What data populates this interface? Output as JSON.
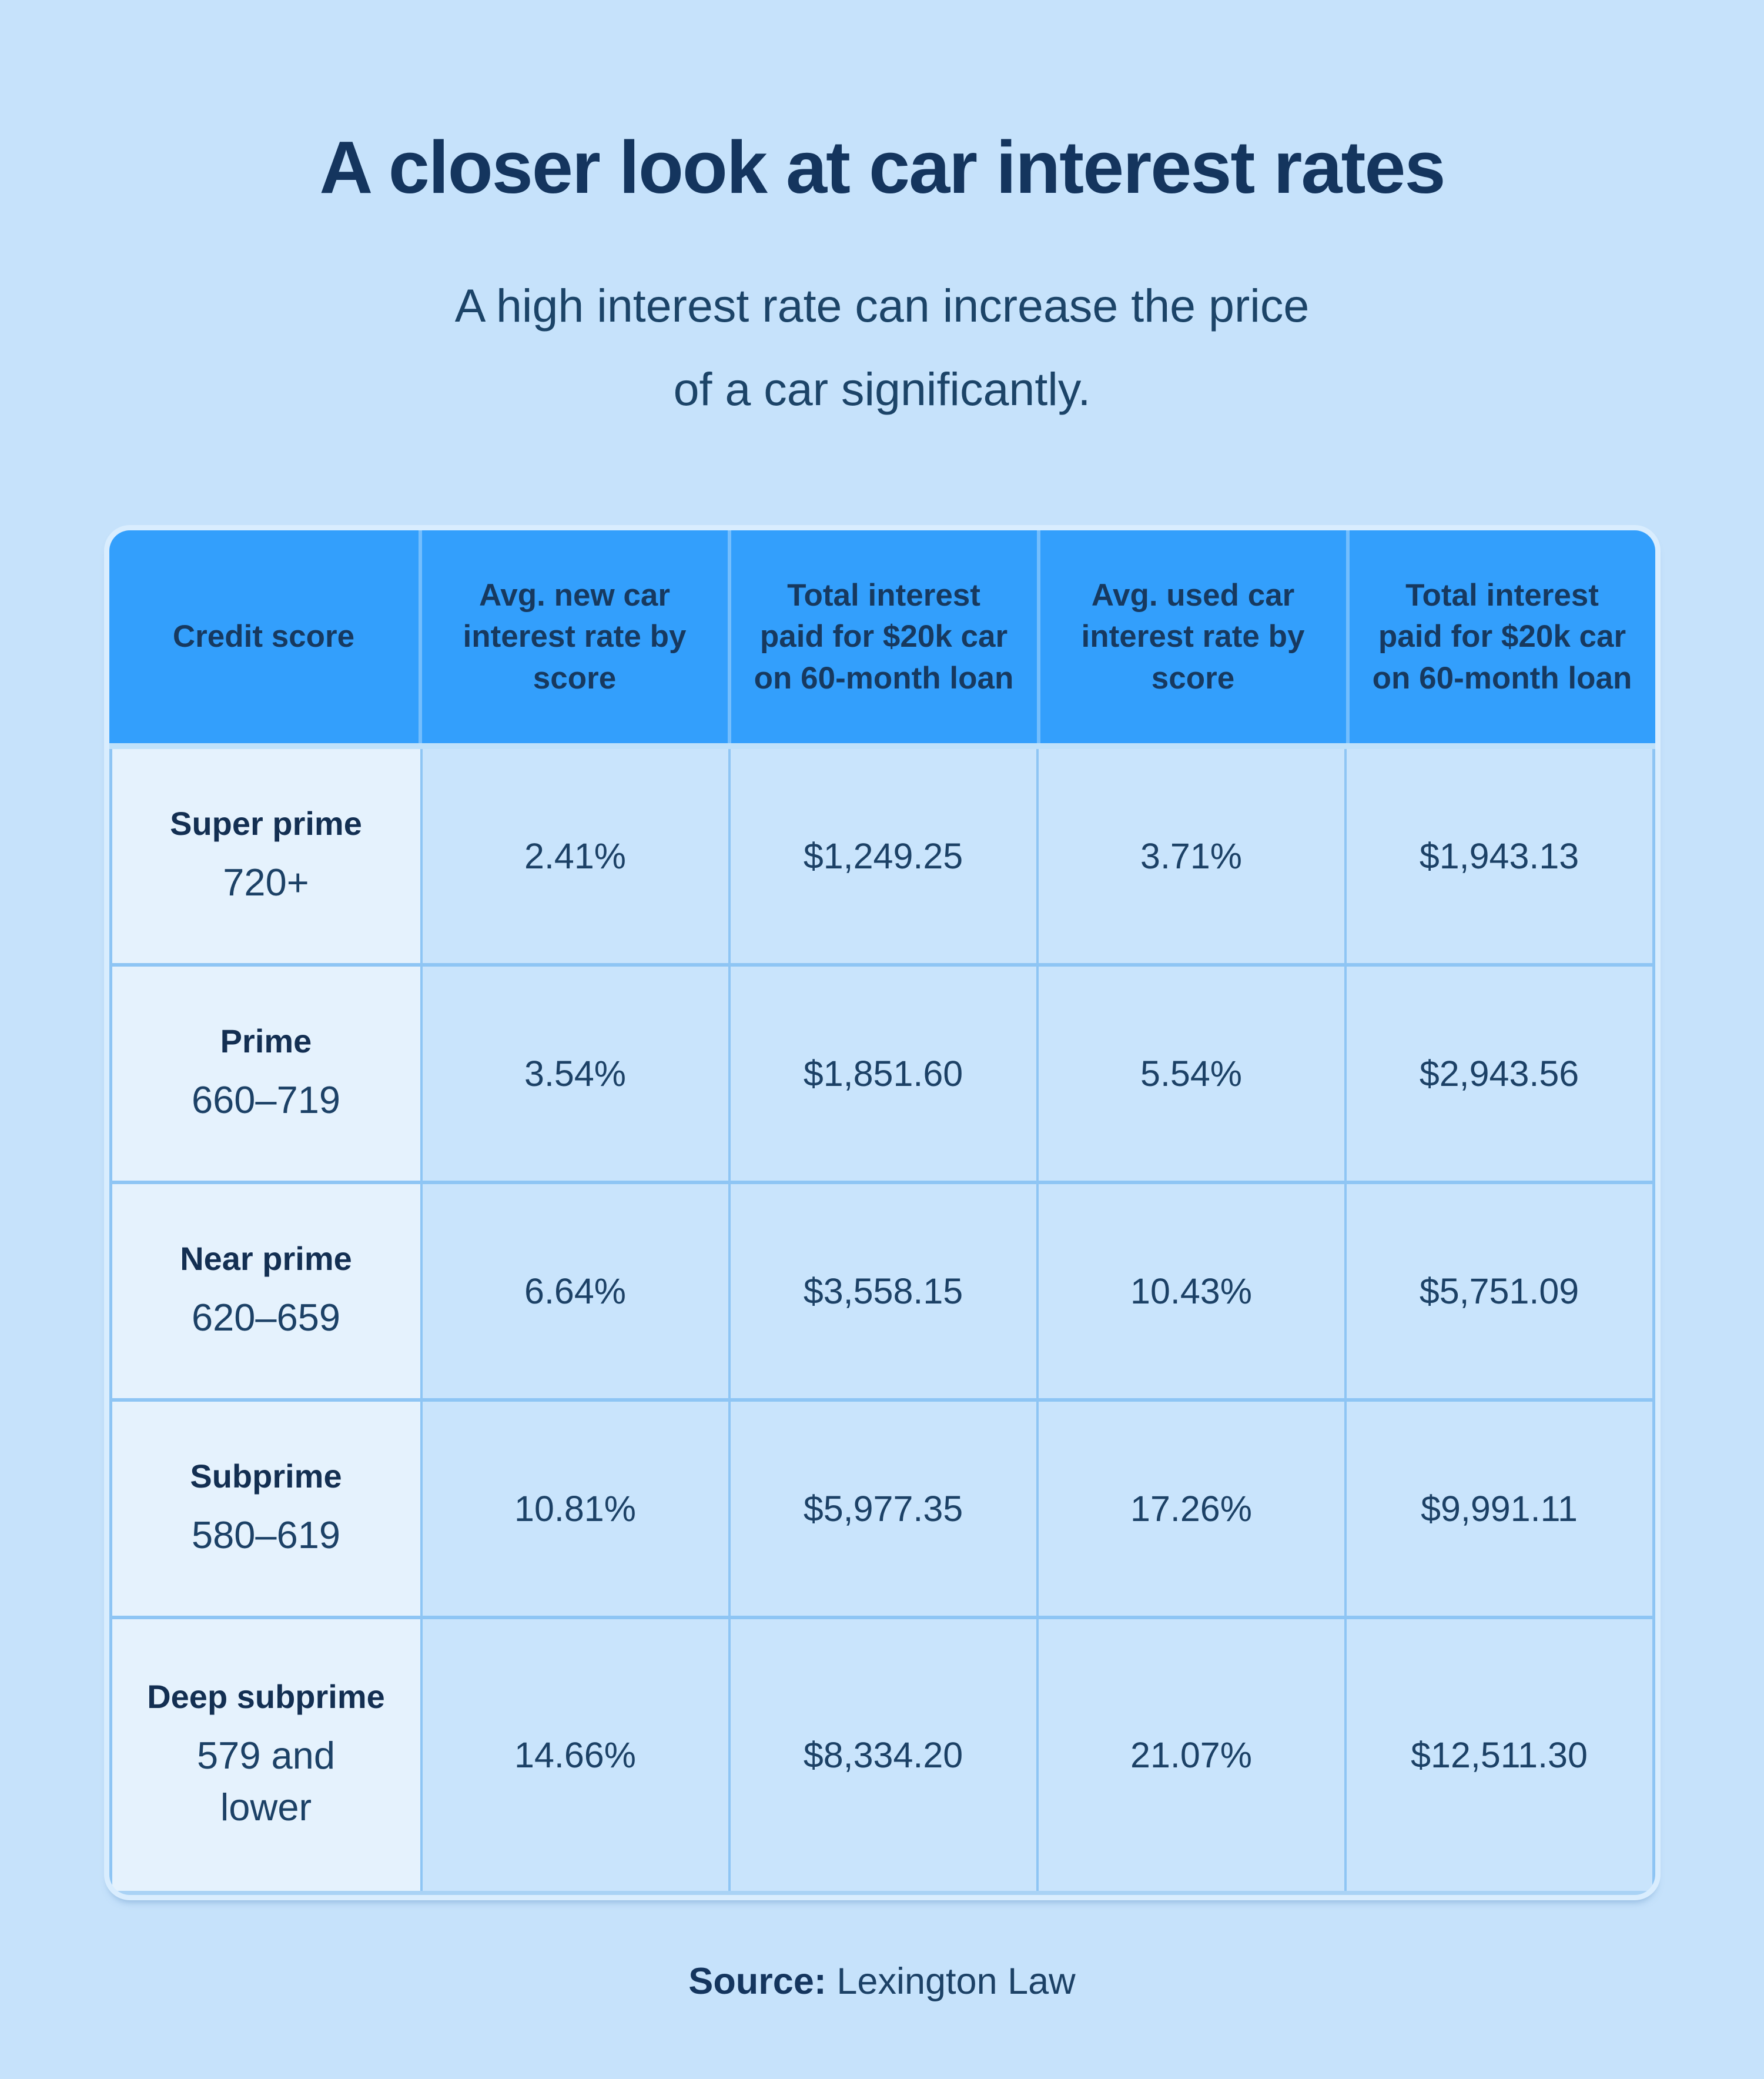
{
  "title": "A closer look at car interest rates",
  "subtitle": {
    "line1": "A high interest rate can increase the price",
    "line2": "of a car significantly."
  },
  "table": {
    "headers": [
      "Credit score",
      "Avg. new car interest rate by score",
      "Total interest paid for $20k car on 60-month loan",
      "Avg. used car interest rate by score",
      "Total interest paid for $20k car on 60-month loan"
    ],
    "rows": [
      {
        "tier": "Super prime",
        "range": "720+",
        "new_rate": "2.41%",
        "new_total": "$1,249.25",
        "used_rate": "3.71%",
        "used_total": "$1,943.13"
      },
      {
        "tier": "Prime",
        "range": "660–719",
        "new_rate": "3.54%",
        "new_total": "$1,851.60",
        "used_rate": "5.54%",
        "used_total": "$2,943.56"
      },
      {
        "tier": "Near prime",
        "range": "620–659",
        "new_rate": "6.64%",
        "new_total": "$3,558.15",
        "used_rate": "10.43%",
        "used_total": "$5,751.09"
      },
      {
        "tier": "Subprime",
        "range": "580–619",
        "new_rate": "10.81%",
        "new_total": "$5,977.35",
        "used_rate": "17.26%",
        "used_total": "$9,991.11"
      },
      {
        "tier": "Deep subprime",
        "range": "579 and\nlower",
        "new_rate": "14.66%",
        "new_total": "$8,334.20",
        "used_rate": "21.07%",
        "used_total": "$12,511.30"
      }
    ]
  },
  "source": {
    "label": "Source:",
    "value": "Lexington Law"
  },
  "colors": {
    "page_bg": "#c6e2fb",
    "header_bg": "#339ffc",
    "label_cell_bg": "#e5f2fd",
    "data_cell_bg": "#c9e4fc",
    "divider": "#8ec5f4",
    "rim": "#d9edfe",
    "text_dark": "#14355e"
  },
  "chart_data": {
    "type": "table",
    "title": "A closer look at car interest rates",
    "subtitle": "A high interest rate can increase the price of a car significantly.",
    "columns": [
      "Credit score",
      "Avg. new car interest rate by score",
      "Total interest paid for $20k car on 60-month loan",
      "Avg. used car interest rate by score",
      "Total interest paid for $20k car on 60-month loan"
    ],
    "rows": [
      [
        "Super prime 720+",
        2.41,
        1249.25,
        3.71,
        1943.13
      ],
      [
        "Prime 660–719",
        3.54,
        1851.6,
        5.54,
        2943.56
      ],
      [
        "Near prime 620–659",
        6.64,
        3558.15,
        10.43,
        5751.09
      ],
      [
        "Subprime 580–619",
        10.81,
        5977.35,
        17.26,
        9991.11
      ],
      [
        "Deep subprime 579 and lower",
        14.66,
        8334.2,
        21.07,
        12511.3
      ]
    ],
    "units": {
      "rates": "percent",
      "totals": "USD"
    },
    "source": "Lexington Law"
  }
}
